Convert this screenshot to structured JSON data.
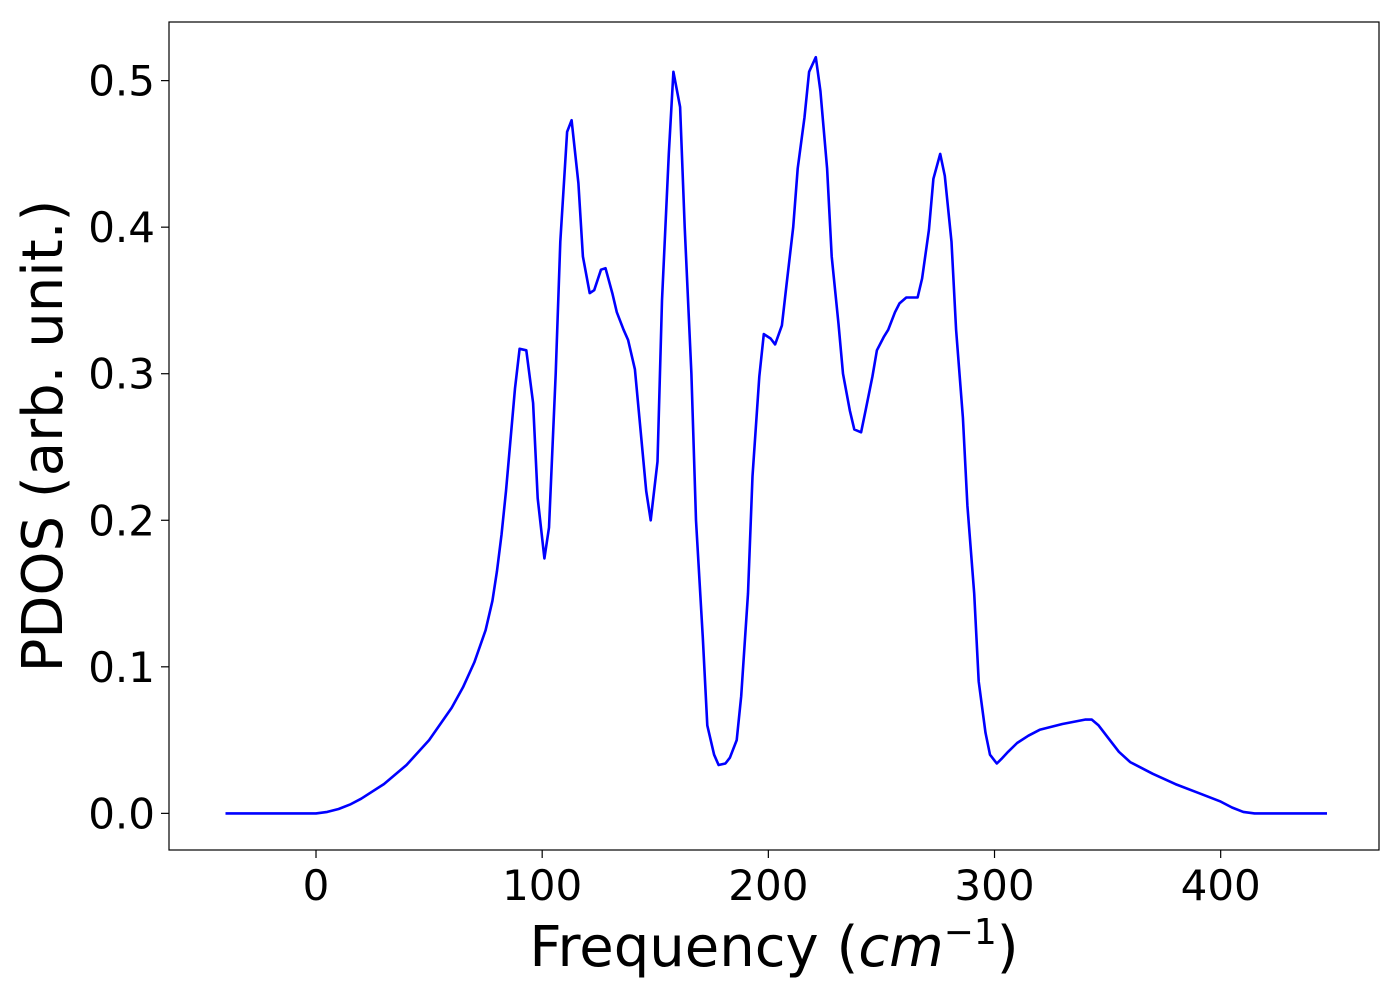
{
  "chart_data": {
    "type": "line",
    "title": "",
    "xlabel_text": "Frequency (",
    "xlabel_unit_base": "cm",
    "xlabel_unit_exp": "−1",
    "xlabel_close": ")",
    "ylabel": "PDOS (arb. unit.)",
    "xlim": [
      -65,
      470
    ],
    "ylim": [
      -0.025,
      0.54
    ],
    "xticks": [
      0,
      100,
      200,
      300,
      400
    ],
    "xtick_labels": [
      "0",
      "100",
      "200",
      "300",
      "400"
    ],
    "yticks": [
      0.0,
      0.1,
      0.2,
      0.3,
      0.4,
      0.5
    ],
    "ytick_labels": [
      "0.0",
      "0.1",
      "0.2",
      "0.3",
      "0.4",
      "0.5"
    ],
    "grid": false,
    "legend": false,
    "line_color": "#0000ff",
    "series": [
      {
        "x": [
          -40,
          -20,
          0,
          5,
          10,
          15,
          20,
          30,
          40,
          50,
          60,
          65,
          70,
          75,
          78,
          80,
          82,
          84,
          86,
          88,
          90,
          93,
          96,
          98,
          101,
          103,
          106,
          108,
          111,
          113,
          116,
          118,
          121,
          123,
          126,
          128,
          131,
          133,
          136,
          138,
          141,
          143,
          146,
          148,
          151,
          153,
          156,
          158,
          161,
          163,
          166,
          168,
          171,
          173,
          176,
          178,
          181,
          183,
          186,
          188,
          191,
          193,
          196,
          198,
          201,
          203,
          206,
          208,
          211,
          213,
          216,
          218,
          221,
          223,
          226,
          228,
          231,
          233,
          236,
          238,
          241,
          243,
          246,
          248,
          251,
          253,
          256,
          258,
          261,
          263,
          266,
          268,
          271,
          273,
          276,
          278,
          281,
          283,
          286,
          288,
          291,
          293,
          296,
          298,
          301,
          303,
          306,
          310,
          315,
          320,
          330,
          340,
          343,
          346,
          350,
          355,
          360,
          370,
          380,
          390,
          400,
          405,
          410,
          415,
          420,
          430,
          447
        ],
        "y": [
          0.0,
          0.0,
          0.0,
          0.001,
          0.003,
          0.006,
          0.01,
          0.02,
          0.033,
          0.05,
          0.072,
          0.086,
          0.103,
          0.125,
          0.145,
          0.165,
          0.19,
          0.22,
          0.255,
          0.29,
          0.317,
          0.316,
          0.28,
          0.215,
          0.174,
          0.195,
          0.3,
          0.39,
          0.465,
          0.473,
          0.43,
          0.38,
          0.355,
          0.357,
          0.371,
          0.372,
          0.355,
          0.342,
          0.33,
          0.323,
          0.303,
          0.27,
          0.22,
          0.2,
          0.24,
          0.35,
          0.45,
          0.506,
          0.482,
          0.4,
          0.3,
          0.2,
          0.12,
          0.06,
          0.04,
          0.033,
          0.034,
          0.038,
          0.05,
          0.08,
          0.15,
          0.23,
          0.298,
          0.327,
          0.324,
          0.32,
          0.333,
          0.36,
          0.4,
          0.44,
          0.475,
          0.506,
          0.516,
          0.493,
          0.44,
          0.38,
          0.334,
          0.3,
          0.275,
          0.262,
          0.26,
          0.275,
          0.298,
          0.316,
          0.325,
          0.33,
          0.342,
          0.348,
          0.352,
          0.352,
          0.352,
          0.365,
          0.398,
          0.433,
          0.45,
          0.435,
          0.39,
          0.33,
          0.27,
          0.21,
          0.15,
          0.09,
          0.055,
          0.04,
          0.034,
          0.037,
          0.042,
          0.048,
          0.053,
          0.057,
          0.061,
          0.064,
          0.064,
          0.06,
          0.052,
          0.042,
          0.035,
          0.027,
          0.02,
          0.014,
          0.008,
          0.004,
          0.001,
          0.0,
          0.0,
          0.0,
          0.0
        ]
      }
    ]
  }
}
